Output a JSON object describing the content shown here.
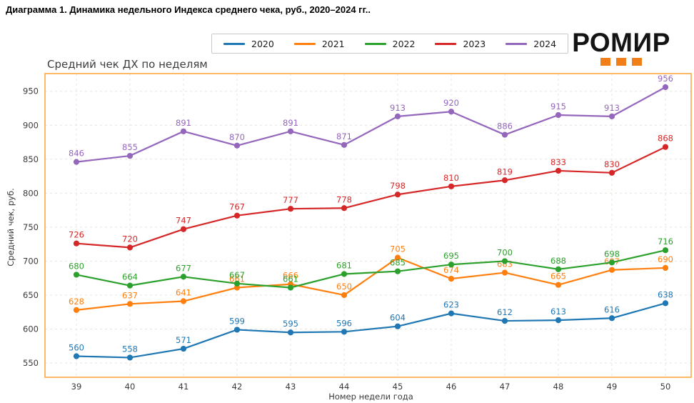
{
  "page": {
    "title": "Диаграмма 1. Динамика недельного Индекса среднего чека, руб., 2020–2024 гг.."
  },
  "logo": {
    "text": "РОМИР",
    "accent_color": "#f07f1a",
    "squares": 3
  },
  "chart_data": {
    "type": "line",
    "title": "Средний чек ДХ по неделям",
    "xlabel": "Номер недели года",
    "ylabel": "Средний чек, руб.",
    "categories": [
      39,
      40,
      41,
      42,
      43,
      44,
      45,
      46,
      47,
      48,
      49,
      50
    ],
    "series": [
      {
        "name": "2020",
        "color": "#1f77b4",
        "values": [
          560,
          558,
          571,
          599,
          595,
          596,
          604,
          623,
          612,
          613,
          616,
          638
        ]
      },
      {
        "name": "2021",
        "color": "#ff7f0e",
        "values": [
          628,
          637,
          641,
          661,
          666,
          650,
          705,
          674,
          683,
          665,
          687,
          690
        ]
      },
      {
        "name": "2022",
        "color": "#2ca02c",
        "values": [
          680,
          664,
          677,
          667,
          661,
          681,
          685,
          695,
          700,
          688,
          698,
          716
        ]
      },
      {
        "name": "2023",
        "color": "#d62728",
        "values": [
          726,
          720,
          747,
          767,
          777,
          778,
          798,
          810,
          819,
          833,
          830,
          868
        ]
      },
      {
        "name": "2024",
        "color": "#9467bd",
        "values": [
          846,
          855,
          891,
          870,
          891,
          871,
          913,
          920,
          886,
          915,
          913,
          956
        ]
      }
    ],
    "yticks": [
      550,
      600,
      650,
      700,
      750,
      800,
      850,
      900,
      950
    ],
    "ylim": [
      529,
      976
    ],
    "grid": "dashed",
    "grid_color": "#eae3dc",
    "plot_border_color": "#ffa640",
    "tick_color": "#3a3a3a",
    "legend_position": "top-center",
    "value_labels": true
  }
}
